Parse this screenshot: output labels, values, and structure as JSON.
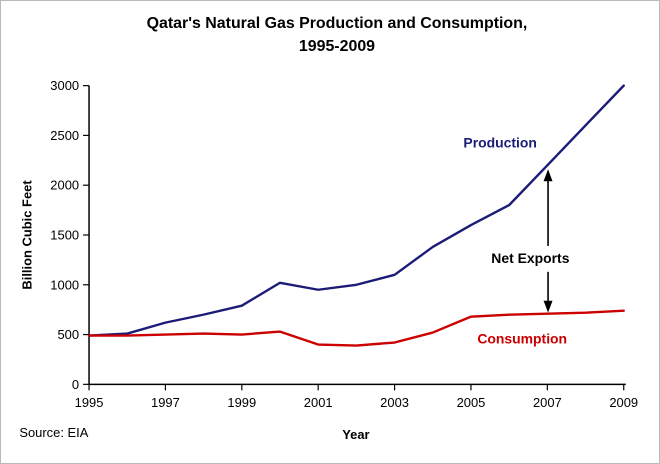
{
  "title": {
    "line1": "Qatar's Natural Gas Production and Consumption,",
    "line2": "1995-2009"
  },
  "source_note": "Source: EIA",
  "chart_data": {
    "type": "line",
    "title": "Qatar's Natural Gas Production and Consumption, 1995-2009",
    "xlabel": "Year",
    "ylabel": "Billion Cubic Feet",
    "grid": false,
    "legend": "inline-labels",
    "x": [
      1995,
      1996,
      1997,
      1998,
      1999,
      2000,
      2001,
      2002,
      2003,
      2004,
      2005,
      2006,
      2007,
      2008,
      2009
    ],
    "xticks": [
      1995,
      1997,
      1999,
      2001,
      2003,
      2005,
      2007,
      2009
    ],
    "ylim": [
      0,
      3000
    ],
    "ytick_step": 500,
    "series": [
      {
        "name": "Production",
        "color": "#1c1c78",
        "values": [
          490,
          510,
          620,
          700,
          790,
          1020,
          950,
          1000,
          1100,
          1380,
          1600,
          1800,
          2200,
          2600,
          3000
        ]
      },
      {
        "name": "Consumption",
        "color": "#cc0000",
        "values": [
          490,
          490,
          500,
          510,
          500,
          530,
          400,
          390,
          420,
          520,
          680,
          700,
          710,
          720,
          740
        ]
      }
    ],
    "annotations": {
      "net_exports": "Net Exports",
      "net_exports_note": "double-headed vertical arrow at year 2007 spanning gap between Production and Consumption lines"
    }
  }
}
